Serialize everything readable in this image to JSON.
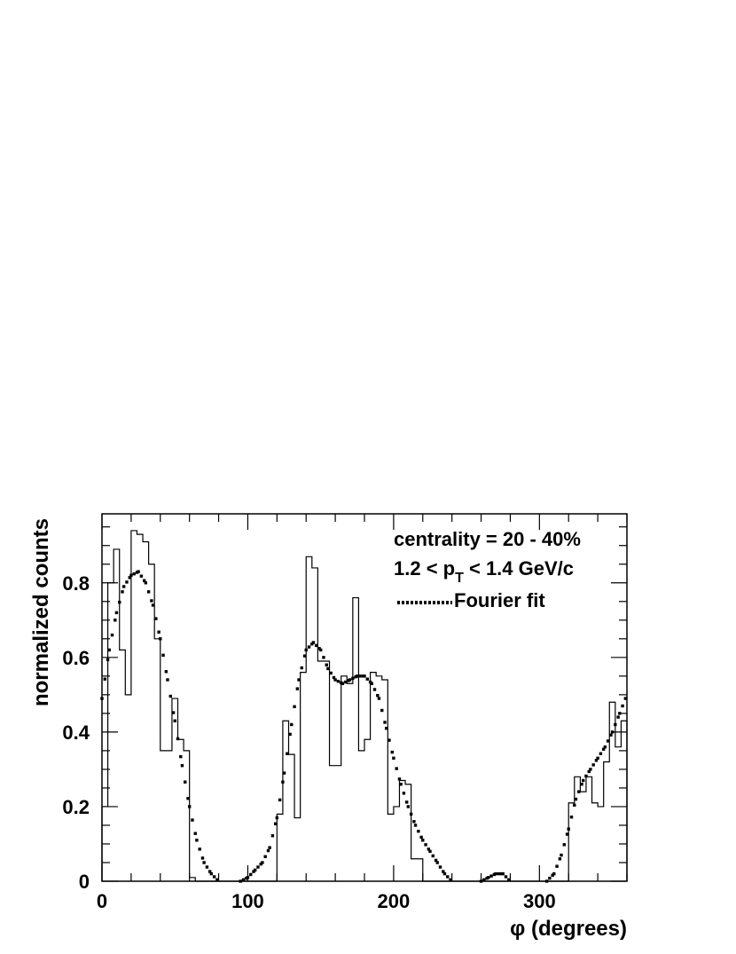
{
  "chart_data": {
    "type": "line",
    "xlabel": "φ (degrees)",
    "ylabel": "normalized counts",
    "xlim": [
      0,
      360
    ],
    "ylim": [
      0,
      0.95
    ],
    "x_ticks": [
      0,
      100,
      200,
      300
    ],
    "x_tick_labels": [
      "0",
      "100",
      "200",
      "300"
    ],
    "y_ticks": [
      0,
      0.2,
      0.4,
      0.6,
      0.8
    ],
    "y_tick_labels": [
      "0",
      "0.2",
      "0.4",
      "0.6",
      "0.8"
    ],
    "grid": false,
    "annotations": {
      "centrality": "centrality = 20 - 40%",
      "pt_prefix": "1.2 < p",
      "pt_sub": "T",
      "pt_suffix": " < 1.4 GeV/c",
      "fit_legend": "Fourier fit"
    },
    "histogram": {
      "bin_edges": [
        0,
        4,
        8,
        12,
        16,
        20,
        24,
        28,
        32,
        36,
        40,
        44,
        48,
        52,
        56,
        60,
        64,
        68,
        72,
        76,
        80,
        84,
        88,
        92,
        96,
        100,
        104,
        108,
        112,
        116,
        120,
        124,
        128,
        132,
        136,
        140,
        144,
        148,
        152,
        156,
        160,
        164,
        168,
        172,
        176,
        180,
        184,
        188,
        192,
        196,
        200,
        204,
        208,
        212,
        216,
        220,
        224,
        228,
        232,
        236,
        240,
        244,
        248,
        252,
        256,
        260,
        264,
        268,
        272,
        276,
        280,
        284,
        288,
        292,
        296,
        300,
        304,
        308,
        312,
        316,
        320,
        324,
        328,
        332,
        336,
        340,
        344,
        348,
        352,
        356,
        360
      ],
      "values": [
        0.2,
        0.8,
        0.89,
        0.62,
        0.5,
        0.94,
        0.93,
        0.91,
        0.85,
        0.65,
        0.35,
        0.35,
        0.49,
        0.38,
        0.35,
        0.01,
        0,
        0,
        0,
        0,
        0,
        0,
        0,
        0,
        0,
        0,
        0,
        0,
        0,
        0,
        0.18,
        0.43,
        0.34,
        0.17,
        0.56,
        0.87,
        0.84,
        0.59,
        0.59,
        0.31,
        0.31,
        0.55,
        0.53,
        0.76,
        0.35,
        0.38,
        0.56,
        0.55,
        0.54,
        0.18,
        0.2,
        0.27,
        0.26,
        0.06,
        0.06,
        0,
        0,
        0,
        0,
        0,
        0,
        0,
        0,
        0,
        0,
        0,
        0,
        0,
        0,
        0,
        0,
        0,
        0,
        0,
        0,
        0,
        0,
        0,
        0,
        0,
        0.21,
        0.28,
        0.24,
        0.28,
        0.21,
        0.2,
        0.32,
        0.48,
        0.36,
        0.43
      ]
    },
    "fit": {
      "name": "Fourier fit",
      "style": "dotted",
      "x": [
        0,
        5,
        10,
        15,
        20,
        25,
        30,
        35,
        40,
        45,
        50,
        55,
        60,
        65,
        70,
        75,
        80,
        95,
        100,
        105,
        110,
        115,
        120,
        125,
        130,
        135,
        140,
        145,
        150,
        155,
        160,
        165,
        170,
        175,
        180,
        185,
        190,
        195,
        200,
        205,
        210,
        215,
        220,
        225,
        230,
        235,
        240,
        260,
        265,
        270,
        275,
        280,
        305,
        310,
        315,
        320,
        325,
        330,
        335,
        340,
        345,
        350,
        355,
        360
      ],
      "y": [
        0.49,
        0.62,
        0.72,
        0.79,
        0.82,
        0.83,
        0.8,
        0.74,
        0.65,
        0.54,
        0.43,
        0.31,
        0.2,
        0.11,
        0.05,
        0.02,
        0.0,
        0.0,
        0.01,
        0.03,
        0.05,
        0.09,
        0.17,
        0.29,
        0.42,
        0.54,
        0.62,
        0.64,
        0.62,
        0.57,
        0.54,
        0.53,
        0.54,
        0.55,
        0.55,
        0.53,
        0.49,
        0.41,
        0.33,
        0.26,
        0.2,
        0.15,
        0.11,
        0.08,
        0.05,
        0.02,
        0.0,
        0.0,
        0.01,
        0.02,
        0.02,
        0.0,
        0.0,
        0.02,
        0.07,
        0.14,
        0.22,
        0.27,
        0.3,
        0.33,
        0.36,
        0.4,
        0.45,
        0.5
      ]
    }
  }
}
